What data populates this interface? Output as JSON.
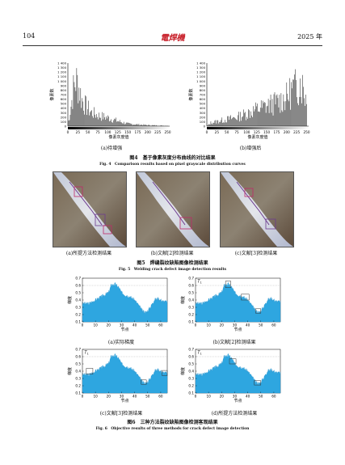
{
  "header": {
    "page_number": "104",
    "logo_text": "電焊機",
    "year": "2025 年"
  },
  "fig4": {
    "caption_cn": "图4　基于像素灰度分布曲线的对比结果",
    "caption_en": "Fig. 4　Comparison results based on pixel grayscale distribution curves",
    "sub_a": "(a)待增强",
    "sub_b": "(b)增强后",
    "xlabel": "像素灰度值",
    "ylabel": "像素数",
    "yticks": [
      "1 400",
      "1 300",
      "1 200",
      "1 100",
      "1 000",
      "900",
      "800",
      "700",
      "600",
      "500",
      "400",
      "300",
      "200",
      "100",
      "0"
    ],
    "xticks": [
      "0",
      "25",
      "50",
      "75",
      "100",
      "125",
      "150",
      "175",
      "200",
      "225",
      "250"
    ]
  },
  "fig5": {
    "caption_cn": "图5　焊缝裂纹缺陷图像检测结果",
    "caption_en": "Fig. 5　Welding crack defect image detection results",
    "sub_a": "(a)所提方法检测结果",
    "sub_b": "(b)文献[2]检测结果",
    "sub_c": "(c)文献[3]检测结果"
  },
  "fig6": {
    "caption_cn": "图6　三种方法裂纹缺陷图像检测客观结果",
    "caption_en": "Fig. 6　Objective results of three methods for crack defect image detection",
    "sub_a": "(a)实际梯度",
    "sub_b": "(b)文献[2]检测结果",
    "sub_c": "(c)文献[3]检测结果",
    "sub_d": "(d)所提方法检测结果",
    "xlabel": "节点",
    "ylabel": "梯度",
    "yticks": [
      "0.7",
      "0.6",
      "0.5",
      "0.4",
      "0.3",
      "0.2",
      "0.1"
    ],
    "xticks": [
      "0",
      "10",
      "20",
      "30",
      "40",
      "50",
      "60"
    ],
    "t_label": "T",
    "t_sub": "1"
  },
  "chart_data": [
    {
      "type": "bar",
      "title": "",
      "xlabel": "像素灰度值",
      "ylabel": "像素数",
      "xlim": [
        0,
        255
      ],
      "ylim": [
        0,
        1400
      ],
      "series": [
        {
          "values_sample": [
            {
              "x": 15,
              "y": 1150
            },
            {
              "x": 20,
              "y": 1350
            },
            {
              "x": 25,
              "y": 1280
            },
            {
              "x": 30,
              "y": 1050
            },
            {
              "x": 35,
              "y": 800
            },
            {
              "x": 45,
              "y": 600
            },
            {
              "x": 60,
              "y": 400
            },
            {
              "x": 80,
              "y": 300
            },
            {
              "x": 100,
              "y": 250
            },
            {
              "x": 125,
              "y": 150
            },
            {
              "x": 150,
              "y": 70
            },
            {
              "x": 175,
              "y": 50
            },
            {
              "x": 200,
              "y": 30
            },
            {
              "x": 225,
              "y": 20
            },
            {
              "x": 250,
              "y": 10
            }
          ]
        }
      ]
    },
    {
      "type": "bar",
      "title": "",
      "xlabel": "像素灰度值",
      "ylabel": "像素数",
      "xlim": [
        0,
        255
      ],
      "ylim": [
        0,
        1400
      ],
      "series": [
        {
          "values_sample": [
            {
              "x": 10,
              "y": 100
            },
            {
              "x": 50,
              "y": 200
            },
            {
              "x": 75,
              "y": 260
            },
            {
              "x": 100,
              "y": 380
            },
            {
              "x": 125,
              "y": 500
            },
            {
              "x": 150,
              "y": 600
            },
            {
              "x": 175,
              "y": 700
            },
            {
              "x": 200,
              "y": 850
            },
            {
              "x": 215,
              "y": 1100
            },
            {
              "x": 225,
              "y": 1150
            },
            {
              "x": 235,
              "y": 1350
            },
            {
              "x": 245,
              "y": 1000
            },
            {
              "x": 250,
              "y": 800
            }
          ]
        }
      ]
    },
    {
      "type": "area",
      "title": "",
      "xlabel": "节点",
      "ylabel": "梯度",
      "xlim": [
        0,
        65
      ],
      "ylim": [
        0.1,
        0.7
      ],
      "x": [
        0,
        5,
        10,
        15,
        20,
        22,
        25,
        28,
        30,
        33,
        36,
        40,
        43,
        46,
        49,
        52,
        55,
        58,
        62,
        65
      ],
      "values": [
        0.35,
        0.35,
        0.4,
        0.45,
        0.5,
        0.6,
        0.62,
        0.57,
        0.5,
        0.47,
        0.45,
        0.4,
        0.33,
        0.25,
        0.23,
        0.3,
        0.4,
        0.42,
        0.38,
        0.37
      ]
    },
    {
      "type": "area",
      "title": "",
      "xlabel": "节点",
      "ylabel": "梯度",
      "xlim": [
        0,
        65
      ],
      "ylim": [
        0.1,
        0.7
      ],
      "x": [
        0,
        5,
        10,
        15,
        20,
        22,
        25,
        28,
        30,
        33,
        36,
        40,
        43,
        46,
        49,
        52,
        55,
        58,
        62,
        65
      ],
      "values": [
        0.35,
        0.35,
        0.4,
        0.45,
        0.5,
        0.6,
        0.62,
        0.57,
        0.5,
        0.47,
        0.45,
        0.4,
        0.33,
        0.25,
        0.23,
        0.3,
        0.4,
        0.42,
        0.38,
        0.37
      ]
    },
    {
      "type": "area",
      "title": "",
      "xlabel": "节点",
      "ylabel": "梯度",
      "xlim": [
        0,
        65
      ],
      "ylim": [
        0.1,
        0.7
      ],
      "x": [
        0,
        5,
        10,
        15,
        20,
        22,
        25,
        28,
        30,
        33,
        36,
        40,
        43,
        46,
        49,
        52,
        55,
        58,
        62,
        65
      ],
      "values": [
        0.35,
        0.35,
        0.4,
        0.45,
        0.5,
        0.6,
        0.62,
        0.57,
        0.5,
        0.47,
        0.45,
        0.4,
        0.33,
        0.25,
        0.23,
        0.3,
        0.4,
        0.42,
        0.38,
        0.37
      ]
    },
    {
      "type": "area",
      "title": "",
      "xlabel": "节点",
      "ylabel": "梯度",
      "xlim": [
        0,
        65
      ],
      "ylim": [
        0.1,
        0.7
      ],
      "x": [
        0,
        5,
        10,
        15,
        20,
        22,
        25,
        28,
        30,
        33,
        36,
        40,
        43,
        46,
        49,
        52,
        55,
        58,
        62,
        65
      ],
      "values": [
        0.35,
        0.35,
        0.4,
        0.45,
        0.5,
        0.6,
        0.62,
        0.57,
        0.5,
        0.47,
        0.45,
        0.4,
        0.33,
        0.25,
        0.23,
        0.3,
        0.4,
        0.42,
        0.38,
        0.37
      ]
    }
  ]
}
